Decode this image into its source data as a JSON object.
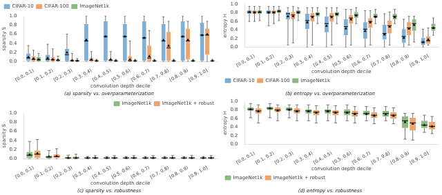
{
  "chart_data": [
    {
      "type": "boxplot",
      "title": "(a) sparsity vs. overparameterization",
      "xlabel": "convolution depth decile",
      "ylabel": "sparsity S",
      "categories": [
        "[0.0, 0.1)",
        "[0.1, 0.2)",
        "[0.2, 0.3)",
        "[0.3, 0.4)",
        "[0.4, 0.5)",
        "[0.5, 0.6)",
        "[0.6, 0.7)",
        "[0.7, 0.8)",
        "[0.8, 0.9)",
        "[0.9, 1.0]"
      ],
      "series": [
        {
          "name": "CIFAR-10",
          "color": "#4C8CBF",
          "whislo": [
            0.0,
            0.0,
            0.0,
            0.0,
            0.0,
            0.0,
            0.0,
            0.0,
            0.0,
            0.0
          ],
          "q1": [
            0.02,
            0.01,
            0.01,
            0.02,
            0.02,
            0.02,
            0.02,
            0.02,
            0.02,
            0.02
          ],
          "med": [
            0.08,
            0.05,
            0.15,
            0.45,
            0.55,
            0.55,
            0.52,
            0.45,
            0.55,
            0.58
          ],
          "mean": [
            0.1,
            0.08,
            0.2,
            0.48,
            0.55,
            0.55,
            0.52,
            0.47,
            0.55,
            0.58
          ],
          "q3": [
            0.18,
            0.15,
            0.28,
            0.82,
            0.88,
            0.82,
            0.88,
            0.82,
            0.88,
            0.85
          ],
          "whishi": [
            0.35,
            0.38,
            0.6,
            1.0,
            1.0,
            1.0,
            1.0,
            0.98,
            1.0,
            1.0
          ]
        },
        {
          "name": "CIFAR-100",
          "color": "#E87C2F",
          "whislo": [
            0.0,
            0.0,
            0.0,
            0.0,
            0.0,
            0.0,
            0.0,
            0.0,
            0.0,
            0.0
          ],
          "q1": [
            0.01,
            0.01,
            0.01,
            0.01,
            0.01,
            0.01,
            0.01,
            0.02,
            0.05,
            0.15
          ],
          "med": [
            0.05,
            0.04,
            0.02,
            0.03,
            0.03,
            0.02,
            0.08,
            0.3,
            0.45,
            0.58
          ],
          "mean": [
            0.07,
            0.05,
            0.03,
            0.05,
            0.05,
            0.05,
            0.12,
            0.35,
            0.48,
            0.6
          ],
          "q3": [
            0.12,
            0.1,
            0.05,
            0.08,
            0.06,
            0.12,
            0.35,
            0.65,
            0.72,
            0.72
          ],
          "whishi": [
            0.25,
            0.28,
            0.18,
            0.22,
            0.22,
            0.45,
            0.68,
            0.88,
            0.88,
            0.88
          ]
        },
        {
          "name": "ImageNet1k",
          "color": "#5B9E4D",
          "whislo": [
            0.0,
            0.0,
            0.0,
            0.0,
            0.0,
            0.0,
            0.0,
            0.0,
            0.0,
            0.0
          ],
          "q1": [
            0.01,
            0.01,
            0.01,
            0.01,
            0.01,
            0.01,
            0.01,
            0.01,
            0.01,
            0.01
          ],
          "med": [
            0.04,
            0.03,
            0.02,
            0.02,
            0.02,
            0.02,
            0.02,
            0.02,
            0.02,
            0.02
          ],
          "mean": [
            0.05,
            0.04,
            0.02,
            0.02,
            0.02,
            0.02,
            0.02,
            0.02,
            0.02,
            0.02
          ],
          "q3": [
            0.1,
            0.06,
            0.04,
            0.03,
            0.03,
            0.03,
            0.03,
            0.03,
            0.03,
            0.03
          ],
          "whishi": [
            0.18,
            0.12,
            0.07,
            0.05,
            0.05,
            0.05,
            0.05,
            0.05,
            0.05,
            0.05
          ]
        }
      ],
      "ylim": [
        0,
        1.0
      ],
      "yticks": [
        {
          "value": 0,
          "label": "0.0"
        },
        0.2,
        0.4,
        0.6,
        0.8,
        {
          "value": 1.0,
          "label": "1.0"
        }
      ],
      "grid": false,
      "legend": "upper left"
    },
    {
      "type": "boxplot",
      "title": "(b) entropy vs. overparameterization",
      "xlabel": "convolution depth decile",
      "ylabel": "entropy H",
      "categories": [
        "[0.0, 0.1)",
        "[0.1, 0.2)",
        "[0.2, 0.3)",
        "[0.3, 0.4)",
        "[0.4, 0.5)",
        "[0.5, 0.6)",
        "[0.6, 0.7)",
        "[0.7, 0.8)",
        "[0.8, 0.9)",
        "[0.9, 1.0]"
      ],
      "series": [
        {
          "name": "CIFAR-10",
          "color": "#4C8CBF",
          "whislo": [
            0.6,
            0.5,
            0.05,
            0.0,
            0.0,
            0.0,
            0.0,
            0.0,
            0.0,
            0.0
          ],
          "q1": [
            0.78,
            0.78,
            0.65,
            0.42,
            0.35,
            0.28,
            0.2,
            0.18,
            0.1,
            0.05
          ],
          "med": [
            0.82,
            0.82,
            0.78,
            0.62,
            0.55,
            0.48,
            0.42,
            0.32,
            0.25,
            0.12
          ],
          "mean": [
            0.82,
            0.81,
            0.72,
            0.58,
            0.5,
            0.44,
            0.38,
            0.3,
            0.22,
            0.12
          ],
          "q3": [
            0.86,
            0.86,
            0.82,
            0.78,
            0.72,
            0.65,
            0.58,
            0.52,
            0.42,
            0.22
          ],
          "whishi": [
            0.95,
            0.95,
            0.92,
            0.92,
            0.92,
            0.88,
            0.85,
            0.78,
            0.65,
            0.42
          ]
        },
        {
          "name": "CIFAR-100",
          "color": "#E87C2F",
          "whislo": [
            0.6,
            0.55,
            0.1,
            0.05,
            0.05,
            0.05,
            0.05,
            0.05,
            0.05,
            0.05
          ],
          "q1": [
            0.78,
            0.78,
            0.65,
            0.6,
            0.6,
            0.55,
            0.45,
            0.32,
            0.28,
            0.08
          ],
          "med": [
            0.82,
            0.82,
            0.75,
            0.72,
            0.72,
            0.68,
            0.6,
            0.5,
            0.45,
            0.15
          ],
          "mean": [
            0.81,
            0.81,
            0.72,
            0.7,
            0.7,
            0.65,
            0.58,
            0.48,
            0.43,
            0.18
          ],
          "q3": [
            0.86,
            0.86,
            0.82,
            0.8,
            0.8,
            0.75,
            0.68,
            0.62,
            0.58,
            0.25
          ],
          "whishi": [
            0.95,
            0.95,
            0.95,
            0.92,
            0.92,
            0.88,
            0.85,
            0.82,
            0.72,
            0.45
          ]
        },
        {
          "name": "ImageNet1k",
          "color": "#5B9E4D",
          "whislo": [
            0.62,
            0.62,
            0.62,
            0.55,
            0.55,
            0.55,
            0.55,
            0.55,
            0.12,
            0.28
          ],
          "q1": [
            0.78,
            0.8,
            0.78,
            0.72,
            0.72,
            0.68,
            0.68,
            0.65,
            0.38,
            0.38
          ],
          "med": [
            0.82,
            0.84,
            0.82,
            0.78,
            0.78,
            0.75,
            0.72,
            0.72,
            0.55,
            0.45
          ],
          "mean": [
            0.82,
            0.84,
            0.81,
            0.77,
            0.77,
            0.74,
            0.71,
            0.7,
            0.52,
            0.45
          ],
          "q3": [
            0.86,
            0.88,
            0.86,
            0.82,
            0.82,
            0.82,
            0.78,
            0.78,
            0.65,
            0.55
          ],
          "whishi": [
            0.95,
            0.95,
            0.92,
            0.92,
            0.92,
            0.92,
            0.88,
            0.88,
            0.72,
            0.68
          ]
        }
      ],
      "ylim": [
        0,
        1.0
      ],
      "yticks": [
        {
          "value": 0,
          "label": "0.0"
        },
        0.2,
        0.4,
        0.6,
        0.8,
        {
          "value": 1.0,
          "label": "1.0"
        }
      ],
      "grid": false,
      "legend": "lower left"
    },
    {
      "type": "boxplot",
      "title": "(c) sparsity vs. robustness",
      "xlabel": "convolution depth decile",
      "ylabel": "sparsity S",
      "categories": [
        "[0.0, 0.1)",
        "[0.1, 0.2)",
        "[0.2, 0.3)",
        "[0.3, 0.4)",
        "[0.4, 0.5)",
        "[0.5, 0.6)",
        "[0.6, 0.7)",
        "[0.7, 0.8)",
        "[0.8, 0.9)",
        "[0.9, 1.0]"
      ],
      "series": [
        {
          "name": "ImageNet1k",
          "color": "#5B9E4D",
          "whislo": [
            0.0,
            0.0,
            0.0,
            0.0,
            0.0,
            0.0,
            0.0,
            0.0,
            0.0,
            0.0
          ],
          "q1": [
            0.02,
            0.01,
            0.01,
            0.01,
            0.01,
            0.01,
            0.01,
            0.01,
            0.01,
            0.01
          ],
          "med": [
            0.08,
            0.04,
            0.02,
            0.02,
            0.02,
            0.02,
            0.02,
            0.02,
            0.02,
            0.02
          ],
          "mean": [
            0.09,
            0.05,
            0.02,
            0.02,
            0.02,
            0.02,
            0.02,
            0.02,
            0.02,
            0.02
          ],
          "q3": [
            0.15,
            0.07,
            0.04,
            0.03,
            0.03,
            0.03,
            0.03,
            0.03,
            0.03,
            0.03
          ],
          "whishi": [
            0.38,
            0.18,
            0.08,
            0.05,
            0.05,
            0.05,
            0.05,
            0.05,
            0.05,
            0.05
          ]
        },
        {
          "name": "ImageNet1k + robust",
          "color": "#E87C2F",
          "whislo": [
            0.0,
            0.0,
            0.0,
            0.0,
            0.0,
            0.0,
            0.0,
            0.0,
            0.0,
            0.0
          ],
          "q1": [
            0.02,
            0.02,
            0.01,
            0.01,
            0.01,
            0.01,
            0.01,
            0.01,
            0.01,
            0.01
          ],
          "med": [
            0.1,
            0.05,
            0.02,
            0.02,
            0.02,
            0.02,
            0.02,
            0.02,
            0.02,
            0.02
          ],
          "mean": [
            0.12,
            0.06,
            0.02,
            0.02,
            0.02,
            0.02,
            0.02,
            0.02,
            0.02,
            0.02
          ],
          "q3": [
            0.18,
            0.1,
            0.05,
            0.04,
            0.04,
            0.04,
            0.04,
            0.04,
            0.04,
            0.04
          ],
          "whishi": [
            0.42,
            0.22,
            0.1,
            0.07,
            0.07,
            0.07,
            0.07,
            0.07,
            0.07,
            0.07
          ]
        }
      ],
      "ylim": [
        0,
        1.0
      ],
      "yticks": [
        {
          "value": 0,
          "label": "0.0"
        },
        0.2,
        0.4,
        0.6,
        0.8,
        {
          "value": 1.0,
          "label": "1.0"
        }
      ],
      "grid": false,
      "legend": "upper right"
    },
    {
      "type": "boxplot",
      "title": "(d) entropy vs. robustness",
      "xlabel": "convolution depth decile",
      "ylabel": "entropy H",
      "categories": [
        "[0.0, 0.1)",
        "[0.1, 0.2)",
        "[0.2, 0.3)",
        "[0.3, 0.4)",
        "[0.4, 0.5)",
        "[0.5, 0.6)",
        "[0.6, 0.7)",
        "[0.7, 0.8)",
        "[0.8, 0.9)",
        "[0.9, 1.0]"
      ],
      "series": [
        {
          "name": "ImageNet1k",
          "color": "#5B9E4D",
          "whislo": [
            0.62,
            0.62,
            0.62,
            0.55,
            0.55,
            0.55,
            0.55,
            0.55,
            0.12,
            0.28
          ],
          "q1": [
            0.78,
            0.8,
            0.78,
            0.72,
            0.72,
            0.68,
            0.68,
            0.65,
            0.38,
            0.38
          ],
          "med": [
            0.82,
            0.84,
            0.82,
            0.78,
            0.78,
            0.75,
            0.72,
            0.72,
            0.55,
            0.45
          ],
          "mean": [
            0.82,
            0.84,
            0.81,
            0.77,
            0.77,
            0.74,
            0.71,
            0.7,
            0.52,
            0.45
          ],
          "q3": [
            0.86,
            0.88,
            0.86,
            0.82,
            0.82,
            0.82,
            0.78,
            0.78,
            0.65,
            0.55
          ],
          "whishi": [
            0.95,
            0.95,
            0.92,
            0.92,
            0.92,
            0.92,
            0.88,
            0.88,
            0.72,
            0.68
          ]
        },
        {
          "name": "ImageNet1k + robust",
          "color": "#E87C2F",
          "whislo": [
            0.5,
            0.55,
            0.55,
            0.5,
            0.5,
            0.5,
            0.48,
            0.48,
            0.1,
            0.25
          ],
          "q1": [
            0.72,
            0.75,
            0.72,
            0.68,
            0.68,
            0.65,
            0.62,
            0.6,
            0.32,
            0.35
          ],
          "med": [
            0.78,
            0.8,
            0.78,
            0.75,
            0.75,
            0.72,
            0.68,
            0.68,
            0.5,
            0.42
          ],
          "mean": [
            0.77,
            0.79,
            0.77,
            0.74,
            0.74,
            0.71,
            0.67,
            0.67,
            0.48,
            0.42
          ],
          "q3": [
            0.84,
            0.86,
            0.84,
            0.8,
            0.8,
            0.78,
            0.75,
            0.75,
            0.62,
            0.52
          ],
          "whishi": [
            0.92,
            0.92,
            0.92,
            0.9,
            0.9,
            0.88,
            0.85,
            0.85,
            0.72,
            0.65
          ]
        }
      ],
      "ylim": [
        0,
        1.0
      ],
      "yticks": [
        {
          "value": 0,
          "label": "0.0"
        },
        0.2,
        0.4,
        0.6,
        0.8,
        {
          "value": 1.0,
          "label": "1.0"
        }
      ],
      "grid": false,
      "legend": "lower left"
    }
  ]
}
